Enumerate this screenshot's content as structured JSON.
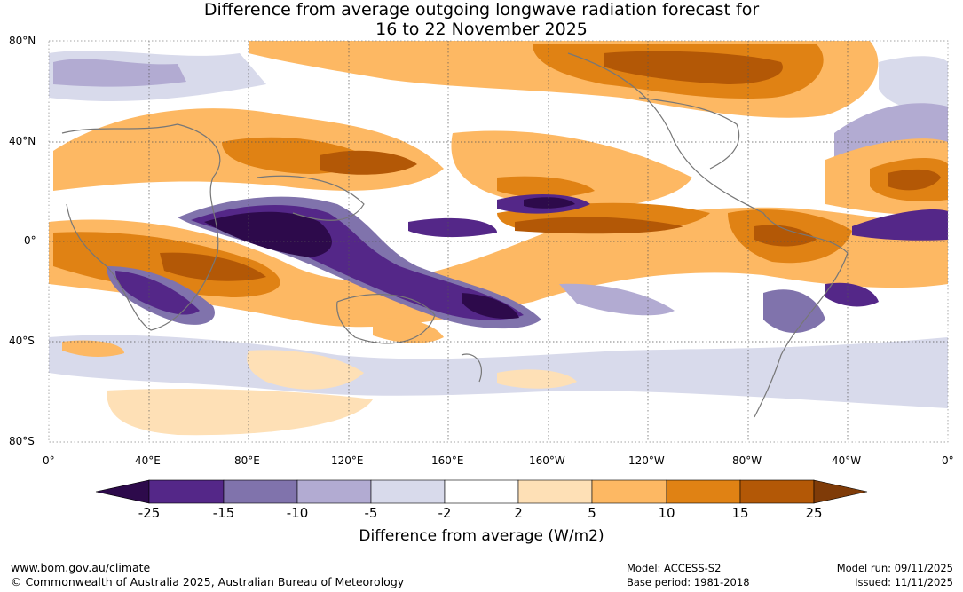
{
  "title": {
    "line1": "Difference from average outgoing longwave radiation forecast for",
    "line2": "16 to 22 November 2025"
  },
  "map": {
    "lat_labels": [
      "80°N",
      "40°N",
      "0°",
      "40°S",
      "80°S"
    ],
    "lon_labels": [
      "0°",
      "40°E",
      "80°E",
      "120°E",
      "160°E",
      "160°W",
      "120°W",
      "80°W",
      "40°W",
      "0°"
    ]
  },
  "colorbar": {
    "title": "Difference from average (W/m2)",
    "tick_labels": [
      "-25",
      "-15",
      "-10",
      "-5",
      "-2",
      "2",
      "5",
      "10",
      "15",
      "25"
    ],
    "colors": [
      "#2d0a4b",
      "#542788",
      "#8073ac",
      "#b2abd2",
      "#d8daeb",
      "#ffffff",
      "#fee0b6",
      "#fdb863",
      "#e08214",
      "#b35806",
      "#7f3b08"
    ]
  },
  "footer": {
    "website": "www.bom.gov.au/climate",
    "copyright": "© Commonwealth of Australia 2025, Australian Bureau of Meteorology",
    "model": "Model: ACCESS-S2",
    "base_period": "Base period: 1981-2018",
    "model_run": "Model run: 09/11/2025",
    "issued": "Issued: 11/11/2025"
  }
}
